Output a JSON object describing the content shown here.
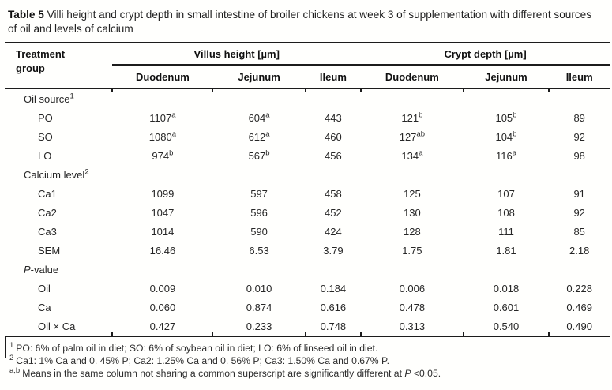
{
  "caption": {
    "label": "Table 5",
    "text": "Villi height and crypt depth in small intestine of broiler chickens at week 3 of supplementation with different sources of oil and levels of calcium"
  },
  "table": {
    "treatment_group_header": "Treatment group",
    "groups": [
      {
        "label": "Villus height [µm]",
        "cols": [
          "Duodenum",
          "Jejunum",
          "Ileum"
        ]
      },
      {
        "label": "Crypt depth [µm]",
        "cols": [
          "Duodenum",
          "Jejunum",
          "Ileum"
        ]
      }
    ],
    "sections": [
      {
        "header": {
          "label": "Oil source",
          "sup": "1"
        },
        "rows": [
          {
            "label": "PO",
            "cells": [
              {
                "v": "1107",
                "sup": "a"
              },
              {
                "v": "604",
                "sup": "a"
              },
              {
                "v": "443"
              },
              {
                "v": "121",
                "sup": "b"
              },
              {
                "v": "105",
                "sup": "b"
              },
              {
                "v": "89"
              }
            ]
          },
          {
            "label": "SO",
            "cells": [
              {
                "v": "1080",
                "sup": "a"
              },
              {
                "v": "612",
                "sup": "a"
              },
              {
                "v": "460"
              },
              {
                "v": "127",
                "sup": "ab"
              },
              {
                "v": "104",
                "sup": "b"
              },
              {
                "v": "92"
              }
            ]
          },
          {
            "label": "LO",
            "cells": [
              {
                "v": "974",
                "sup": "b"
              },
              {
                "v": "567",
                "sup": "b"
              },
              {
                "v": "456"
              },
              {
                "v": "134",
                "sup": "a"
              },
              {
                "v": "116",
                "sup": "a"
              },
              {
                "v": "98"
              }
            ]
          }
        ]
      },
      {
        "header": {
          "label": "Calcium level",
          "sup": "2"
        },
        "rows": [
          {
            "label": "Ca1",
            "cells": [
              {
                "v": "1099"
              },
              {
                "v": "597"
              },
              {
                "v": "458"
              },
              {
                "v": "125"
              },
              {
                "v": "107"
              },
              {
                "v": "91"
              }
            ]
          },
          {
            "label": "Ca2",
            "cells": [
              {
                "v": "1047"
              },
              {
                "v": "596"
              },
              {
                "v": "452"
              },
              {
                "v": "130"
              },
              {
                "v": "108"
              },
              {
                "v": "92"
              }
            ]
          },
          {
            "label": "Ca3",
            "cells": [
              {
                "v": "1014"
              },
              {
                "v": "590"
              },
              {
                "v": "424"
              },
              {
                "v": "128"
              },
              {
                "v": "111"
              },
              {
                "v": "85"
              }
            ]
          },
          {
            "label": "SEM",
            "cells": [
              {
                "v": "16.46"
              },
              {
                "v": "6.53"
              },
              {
                "v": "3.79"
              },
              {
                "v": "1.75"
              },
              {
                "v": "1.81"
              },
              {
                "v": "2.18"
              }
            ]
          }
        ]
      },
      {
        "header": {
          "italic_prefix": "P",
          "label": "-value"
        },
        "rows": [
          {
            "label": "Oil",
            "cells": [
              {
                "v": "0.009"
              },
              {
                "v": "0.010"
              },
              {
                "v": "0.184"
              },
              {
                "v": "0.006"
              },
              {
                "v": "0.018"
              },
              {
                "v": "0.228"
              }
            ]
          },
          {
            "label": "Ca",
            "cells": [
              {
                "v": "0.060"
              },
              {
                "v": "0.874"
              },
              {
                "v": "0.616"
              },
              {
                "v": "0.478"
              },
              {
                "v": "0.601"
              },
              {
                "v": "0.469"
              }
            ]
          },
          {
            "label": "Oil × Ca",
            "cells": [
              {
                "v": "0.427"
              },
              {
                "v": "0.233"
              },
              {
                "v": "0.748"
              },
              {
                "v": "0.313"
              },
              {
                "v": "0.540"
              },
              {
                "v": "0.490"
              }
            ]
          }
        ]
      }
    ]
  },
  "footnotes": [
    {
      "sup": "1",
      "text": "PO: 6% of palm oil in diet; SO: 6% of soybean oil in diet; LO: 6% of linseed oil in diet."
    },
    {
      "sup": "2",
      "text": "Ca1: 1% Ca and 0. 45% P; Ca2: 1.25% Ca and 0. 56% P; Ca3: 1.50% Ca and 0.67% P."
    },
    {
      "sup": "a,b",
      "text": "Means in the same column not sharing a common superscript are significantly different at ",
      "italic": "P",
      "tail": " <0.05."
    }
  ],
  "colors": {
    "text": "#232323",
    "rule": "#1c1c1c",
    "background": "#fffffd"
  }
}
